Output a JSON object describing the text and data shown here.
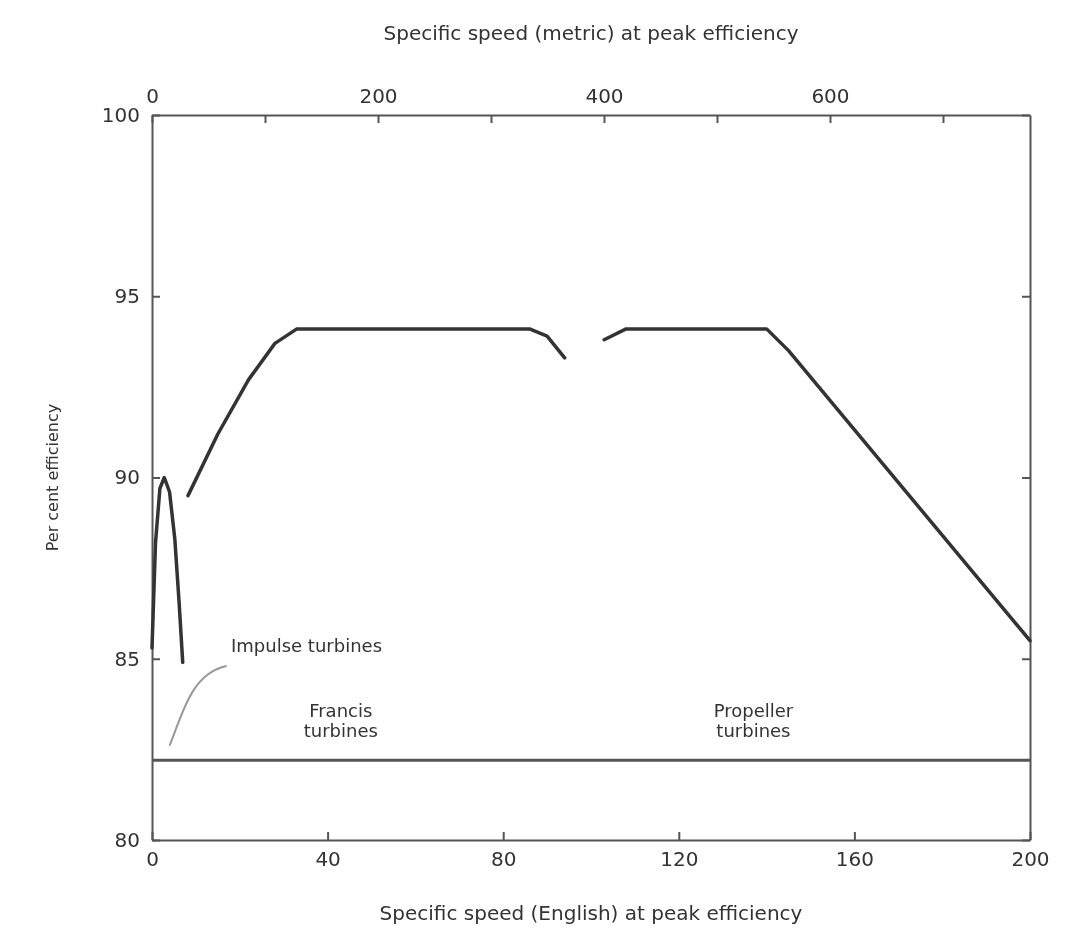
{
  "chart_data": {
    "type": "line",
    "xlabel": "Specific speed (English) at peak efficiency",
    "x2label": "Specific speed (metric) at peak efficiency",
    "ylabel": "Per cent efficiency",
    "xlim": [
      0,
      200
    ],
    "xticks": [
      0,
      40,
      80,
      120,
      160,
      200
    ],
    "ylim": [
      80,
      100
    ],
    "yticks": [
      80,
      85,
      90,
      95,
      100
    ],
    "x2lim": [
      0,
      777
    ],
    "x2ticks": [
      0,
      {
        "value": 100,
        "label": null
      },
      200,
      {
        "value": 300,
        "label": null
      },
      400,
      {
        "value": 500,
        "label": null
      },
      600,
      {
        "value": 700,
        "label": null
      }
    ],
    "grid": false,
    "marker": "none",
    "line_style": "solid",
    "series": [
      {
        "color": "#333333",
        "x": [
          0,
          0.8,
          1.8,
          2.8,
          4,
          5.2,
          6.2,
          7
        ],
        "values": [
          85.3,
          88.2,
          89.7,
          90.0,
          89.6,
          88.3,
          86.5,
          84.9
        ]
      },
      {
        "color": "#333333",
        "x": [
          8.2,
          15,
          22,
          28,
          33,
          60,
          86,
          90,
          94
        ],
        "values": [
          89.5,
          91.2,
          92.7,
          93.7,
          94.1,
          94.1,
          94.1,
          93.9,
          93.3
        ]
      },
      {
        "color": "#333333",
        "x": [
          103,
          108,
          140,
          145,
          200
        ],
        "values": [
          93.8,
          94.1,
          94.1,
          93.5,
          85.5
        ]
      }
    ],
    "ref_lines": [
      {
        "axis": "y",
        "value": 82.2,
        "color": "#555555"
      }
    ],
    "annotations": [
      "Impulse turbines",
      "Francis\nturbines",
      "Propeller\nturbines"
    ]
  }
}
